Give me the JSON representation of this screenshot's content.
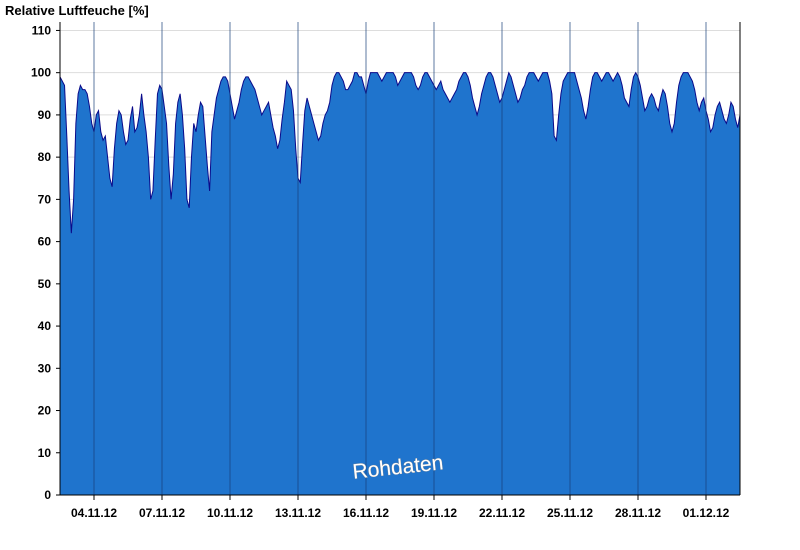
{
  "chart_data": {
    "type": "area",
    "title": "Relative Luftfeuche [%]",
    "xlabel": "",
    "ylabel": "",
    "ylim": [
      0,
      112
    ],
    "yticks": [
      0,
      10,
      20,
      30,
      40,
      50,
      60,
      70,
      80,
      90,
      100,
      110
    ],
    "x_tick_labels": [
      "04.11.12",
      "07.11.12",
      "10.11.12",
      "13.11.12",
      "16.11.12",
      "19.11.12",
      "22.11.12",
      "25.11.12",
      "28.11.12",
      "01.12.12"
    ],
    "x_range_days": [
      "03.11.12 00:00",
      "03.12.12 00:00"
    ],
    "x_tick_days": [
      "04.11.12 12:00",
      "07.11.12 12:00",
      "10.11.12 12:00",
      "13.11.12 12:00",
      "16.11.12 12:00",
      "19.11.12 12:00",
      "22.11.12 12:00",
      "25.11.12 12:00",
      "28.11.12 12:00",
      "01.12.12 12:00"
    ],
    "watermark": "Rohdaten",
    "grid": "horizontal gridlines at 10 and 110 only visible above data; vertical lines at ticks",
    "colors": {
      "fill": "#1f74cd",
      "line": "#0a0a8a",
      "vgrid": "#173e7a",
      "hgrid": "#dddddd"
    },
    "series": [
      {
        "x": [
          "03.11.12 00:00",
          "03.11.12 02:24",
          "03.11.12 04:48",
          "03.11.12 07:12",
          "03.11.12 09:36",
          "03.11.12 12:00",
          "03.11.12 14:24",
          "03.11.12 16:48",
          "03.11.12 19:12",
          "03.11.12 21:36",
          "04.11.12 00:00",
          "04.11.12 02:24",
          "04.11.12 04:48",
          "04.11.12 07:12",
          "04.11.12 09:36",
          "04.11.12 12:00",
          "04.11.12 14:24",
          "04.11.12 16:48",
          "04.11.12 19:12",
          "04.11.12 21:36",
          "05.11.12 00:00",
          "05.11.12 02:24",
          "05.11.12 04:48",
          "05.11.12 07:12",
          "05.11.12 09:36",
          "05.11.12 12:00",
          "05.11.12 14:24",
          "05.11.12 16:48",
          "05.11.12 19:12",
          "05.11.12 21:36",
          "06.11.12 00:00",
          "06.11.12 02:24",
          "06.11.12 04:48",
          "06.11.12 07:12",
          "06.11.12 09:36",
          "06.11.12 12:00",
          "06.11.12 14:24",
          "06.11.12 16:48",
          "06.11.12 19:12",
          "06.11.12 21:36",
          "07.11.12 00:00",
          "07.11.12 02:24",
          "07.11.12 04:48",
          "07.11.12 07:12",
          "07.11.12 09:36",
          "07.11.12 12:00",
          "07.11.12 14:24",
          "07.11.12 16:48",
          "07.11.12 19:12",
          "07.11.12 21:36",
          "08.11.12 00:00",
          "08.11.12 02:24",
          "08.11.12 04:48",
          "08.11.12 07:12",
          "08.11.12 09:36",
          "08.11.12 12:00",
          "08.11.12 14:24",
          "08.11.12 16:48",
          "08.11.12 19:12",
          "08.11.12 21:36",
          "09.11.12 00:00",
          "09.11.12 02:24",
          "09.11.12 04:48",
          "09.11.12 07:12",
          "09.11.12 09:36",
          "09.11.12 12:00",
          "09.11.12 14:24",
          "09.11.12 16:48",
          "09.11.12 19:12",
          "09.11.12 21:36",
          "10.11.12 00:00",
          "10.11.12 02:24",
          "10.11.12 04:48",
          "10.11.12 07:12",
          "10.11.12 09:36",
          "10.11.12 12:00",
          "10.11.12 14:24",
          "10.11.12 16:48",
          "10.11.12 19:12",
          "10.11.12 21:36",
          "11.11.12 00:00",
          "11.11.12 02:24",
          "11.11.12 04:48",
          "11.11.12 07:12",
          "11.11.12 09:36",
          "11.11.12 12:00",
          "11.11.12 14:24",
          "11.11.12 16:48",
          "11.11.12 19:12",
          "11.11.12 21:36",
          "12.11.12 00:00",
          "12.11.12 02:24",
          "12.11.12 04:48",
          "12.11.12 07:12",
          "12.11.12 09:36",
          "12.11.12 12:00",
          "12.11.12 14:24",
          "12.11.12 16:48",
          "12.11.12 19:12",
          "12.11.12 21:36",
          "13.11.12 00:00",
          "13.11.12 02:24",
          "13.11.12 04:48",
          "13.11.12 07:12",
          "13.11.12 09:36",
          "13.11.12 12:00",
          "13.11.12 14:24",
          "13.11.12 16:48",
          "13.11.12 19:12",
          "13.11.12 21:36",
          "14.11.12 00:00",
          "14.11.12 02:24",
          "14.11.12 04:48",
          "14.11.12 07:12",
          "14.11.12 09:36",
          "14.11.12 12:00",
          "14.11.12 14:24",
          "14.11.12 16:48",
          "14.11.12 19:12",
          "14.11.12 21:36",
          "15.11.12 00:00",
          "15.11.12 02:24",
          "15.11.12 04:48",
          "15.11.12 07:12",
          "15.11.12 09:36",
          "15.11.12 12:00",
          "15.11.12 14:24",
          "15.11.12 16:48",
          "15.11.12 19:12",
          "15.11.12 21:36",
          "16.11.12 00:00",
          "16.11.12 02:24",
          "16.11.12 04:48",
          "16.11.12 07:12",
          "16.11.12 09:36",
          "16.11.12 12:00",
          "16.11.12 14:24",
          "16.11.12 16:48",
          "16.11.12 19:12",
          "16.11.12 21:36",
          "17.11.12 00:00",
          "17.11.12 02:24",
          "17.11.12 04:48",
          "17.11.12 07:12",
          "17.11.12 09:36",
          "17.11.12 12:00",
          "17.11.12 14:24",
          "17.11.12 16:48",
          "17.11.12 19:12",
          "17.11.12 21:36",
          "18.11.12 00:00",
          "18.11.12 02:24",
          "18.11.12 04:48",
          "18.11.12 07:12",
          "18.11.12 09:36",
          "18.11.12 12:00",
          "18.11.12 14:24",
          "18.11.12 16:48",
          "18.11.12 19:12",
          "18.11.12 21:36",
          "19.11.12 00:00",
          "19.11.12 02:24",
          "19.11.12 04:48",
          "19.11.12 07:12",
          "19.11.12 09:36",
          "19.11.12 12:00",
          "19.11.12 14:24",
          "19.11.12 16:48",
          "19.11.12 19:12",
          "19.11.12 21:36",
          "20.11.12 00:00",
          "20.11.12 02:24",
          "20.11.12 04:48",
          "20.11.12 07:12",
          "20.11.12 09:36",
          "20.11.12 12:00",
          "20.11.12 14:24",
          "20.11.12 16:48",
          "20.11.12 19:12",
          "20.11.12 21:36",
          "21.11.12 00:00",
          "21.11.12 02:24",
          "21.11.12 04:48",
          "21.11.12 07:12",
          "21.11.12 09:36",
          "21.11.12 12:00",
          "21.11.12 14:24",
          "21.11.12 16:48",
          "21.11.12 19:12",
          "21.11.12 21:36",
          "22.11.12 00:00",
          "22.11.12 02:24",
          "22.11.12 04:48",
          "22.11.12 07:12",
          "22.11.12 09:36",
          "22.11.12 12:00",
          "22.11.12 14:24",
          "22.11.12 16:48",
          "22.11.12 19:12",
          "22.11.12 21:36",
          "23.11.12 00:00",
          "23.11.12 02:24",
          "23.11.12 04:48",
          "23.11.12 07:12",
          "23.11.12 09:36",
          "23.11.12 12:00",
          "23.11.12 14:24",
          "23.11.12 16:48",
          "23.11.12 19:12",
          "23.11.12 21:36",
          "24.11.12 00:00",
          "24.11.12 02:24",
          "24.11.12 04:48",
          "24.11.12 07:12",
          "24.11.12 09:36",
          "24.11.12 12:00",
          "24.11.12 14:24",
          "24.11.12 16:48",
          "24.11.12 19:12",
          "24.11.12 21:36",
          "25.11.12 00:00",
          "25.11.12 02:24",
          "25.11.12 04:48",
          "25.11.12 07:12",
          "25.11.12 09:36",
          "25.11.12 12:00",
          "25.11.12 14:24",
          "25.11.12 16:48",
          "25.11.12 19:12",
          "25.11.12 21:36",
          "26.11.12 00:00",
          "26.11.12 02:24",
          "26.11.12 04:48",
          "26.11.12 07:12",
          "26.11.12 09:36",
          "26.11.12 12:00",
          "26.11.12 14:24",
          "26.11.12 16:48",
          "26.11.12 19:12",
          "26.11.12 21:36",
          "27.11.12 00:00",
          "27.11.12 02:24",
          "27.11.12 04:48",
          "27.11.12 07:12",
          "27.11.12 09:36",
          "27.11.12 12:00",
          "27.11.12 14:24",
          "27.11.12 16:48",
          "27.11.12 19:12",
          "27.11.12 21:36",
          "28.11.12 00:00",
          "28.11.12 02:24",
          "28.11.12 04:48",
          "28.11.12 07:12",
          "28.11.12 09:36",
          "28.11.12 12:00",
          "28.11.12 14:24",
          "28.11.12 16:48",
          "28.11.12 19:12",
          "28.11.12 21:36",
          "29.11.12 00:00",
          "29.11.12 02:24",
          "29.11.12 04:48",
          "29.11.12 07:12",
          "29.11.12 09:36",
          "29.11.12 12:00",
          "29.11.12 14:24",
          "29.11.12 16:48",
          "29.11.12 19:12",
          "29.11.12 21:36",
          "30.11.12 00:00",
          "30.11.12 02:24",
          "30.11.12 04:48",
          "30.11.12 07:12",
          "30.11.12 09:36",
          "30.11.12 12:00",
          "30.11.12 14:24",
          "30.11.12 16:48",
          "30.11.12 19:12",
          "30.11.12 21:36",
          "01.12.12 00:00",
          "01.12.12 02:24",
          "01.12.12 04:48",
          "01.12.12 07:12",
          "01.12.12 09:36",
          "01.12.12 12:00",
          "01.12.12 14:24",
          "01.12.12 16:48",
          "01.12.12 19:12",
          "01.12.12 21:36",
          "02.12.12 00:00",
          "02.12.12 02:24",
          "02.12.12 04:48",
          "02.12.12 07:12",
          "02.12.12 09:36",
          "02.12.12 12:00",
          "02.12.12 14:24",
          "02.12.12 16:48",
          "02.12.12 19:12",
          "02.12.12 21:36",
          "03.12.12 00:00"
        ],
        "values": [
          99,
          98,
          97,
          85,
          72,
          62,
          70,
          88,
          95,
          97,
          96,
          96,
          95,
          92,
          88,
          86,
          90,
          91,
          86,
          84,
          85,
          80,
          75,
          73,
          82,
          88,
          91,
          90,
          86,
          83,
          84,
          89,
          92,
          86,
          87,
          90,
          95,
          90,
          86,
          80,
          70,
          72,
          84,
          95,
          97,
          96,
          92,
          88,
          78,
          70,
          76,
          88,
          93,
          95,
          90,
          82,
          70,
          68,
          80,
          88,
          86,
          90,
          93,
          92,
          85,
          78,
          72,
          86,
          90,
          94,
          96,
          98,
          99,
          99,
          98,
          95,
          92,
          89,
          91,
          93,
          96,
          98,
          99,
          99,
          98,
          97,
          96,
          94,
          92,
          90,
          91,
          92,
          93,
          90,
          87,
          85,
          82,
          84,
          89,
          93,
          98,
          97,
          96,
          91,
          82,
          75,
          74,
          83,
          91,
          94,
          92,
          90,
          88,
          86,
          84,
          85,
          88,
          90,
          91,
          93,
          97,
          99,
          100,
          100,
          99,
          98,
          96,
          96,
          97,
          98,
          100,
          100,
          99,
          99,
          97,
          95,
          98,
          100,
          100,
          100,
          100,
          99,
          98,
          99,
          100,
          100,
          100,
          100,
          99,
          97,
          98,
          99,
          100,
          100,
          100,
          100,
          99,
          97,
          96,
          97,
          99,
          100,
          100,
          99,
          98,
          97,
          96,
          97,
          98,
          96,
          95,
          94,
          93,
          94,
          95,
          96,
          98,
          99,
          100,
          100,
          99,
          97,
          94,
          92,
          90,
          92,
          95,
          97,
          99,
          100,
          100,
          99,
          97,
          95,
          93,
          94,
          96,
          98,
          100,
          99,
          97,
          95,
          93,
          94,
          96,
          97,
          99,
          100,
          100,
          100,
          99,
          98,
          99,
          100,
          100,
          100,
          98,
          95,
          85,
          84,
          90,
          95,
          98,
          99,
          100,
          100,
          100,
          100,
          98,
          96,
          94,
          91,
          89,
          92,
          96,
          99,
          100,
          100,
          99,
          98,
          99,
          100,
          100,
          99,
          98,
          99,
          100,
          99,
          97,
          94,
          93,
          92,
          96,
          99,
          100,
          99,
          97,
          94,
          91,
          92,
          94,
          95,
          94,
          92,
          91,
          94,
          96,
          95,
          92,
          88,
          86,
          88,
          93,
          97,
          99,
          100,
          100,
          100,
          99,
          98,
          96,
          93,
          91,
          93,
          94,
          91,
          89,
          86,
          87,
          90,
          92,
          93,
          91,
          89,
          88,
          90,
          93,
          92,
          89,
          87,
          90
        ]
      }
    ]
  }
}
